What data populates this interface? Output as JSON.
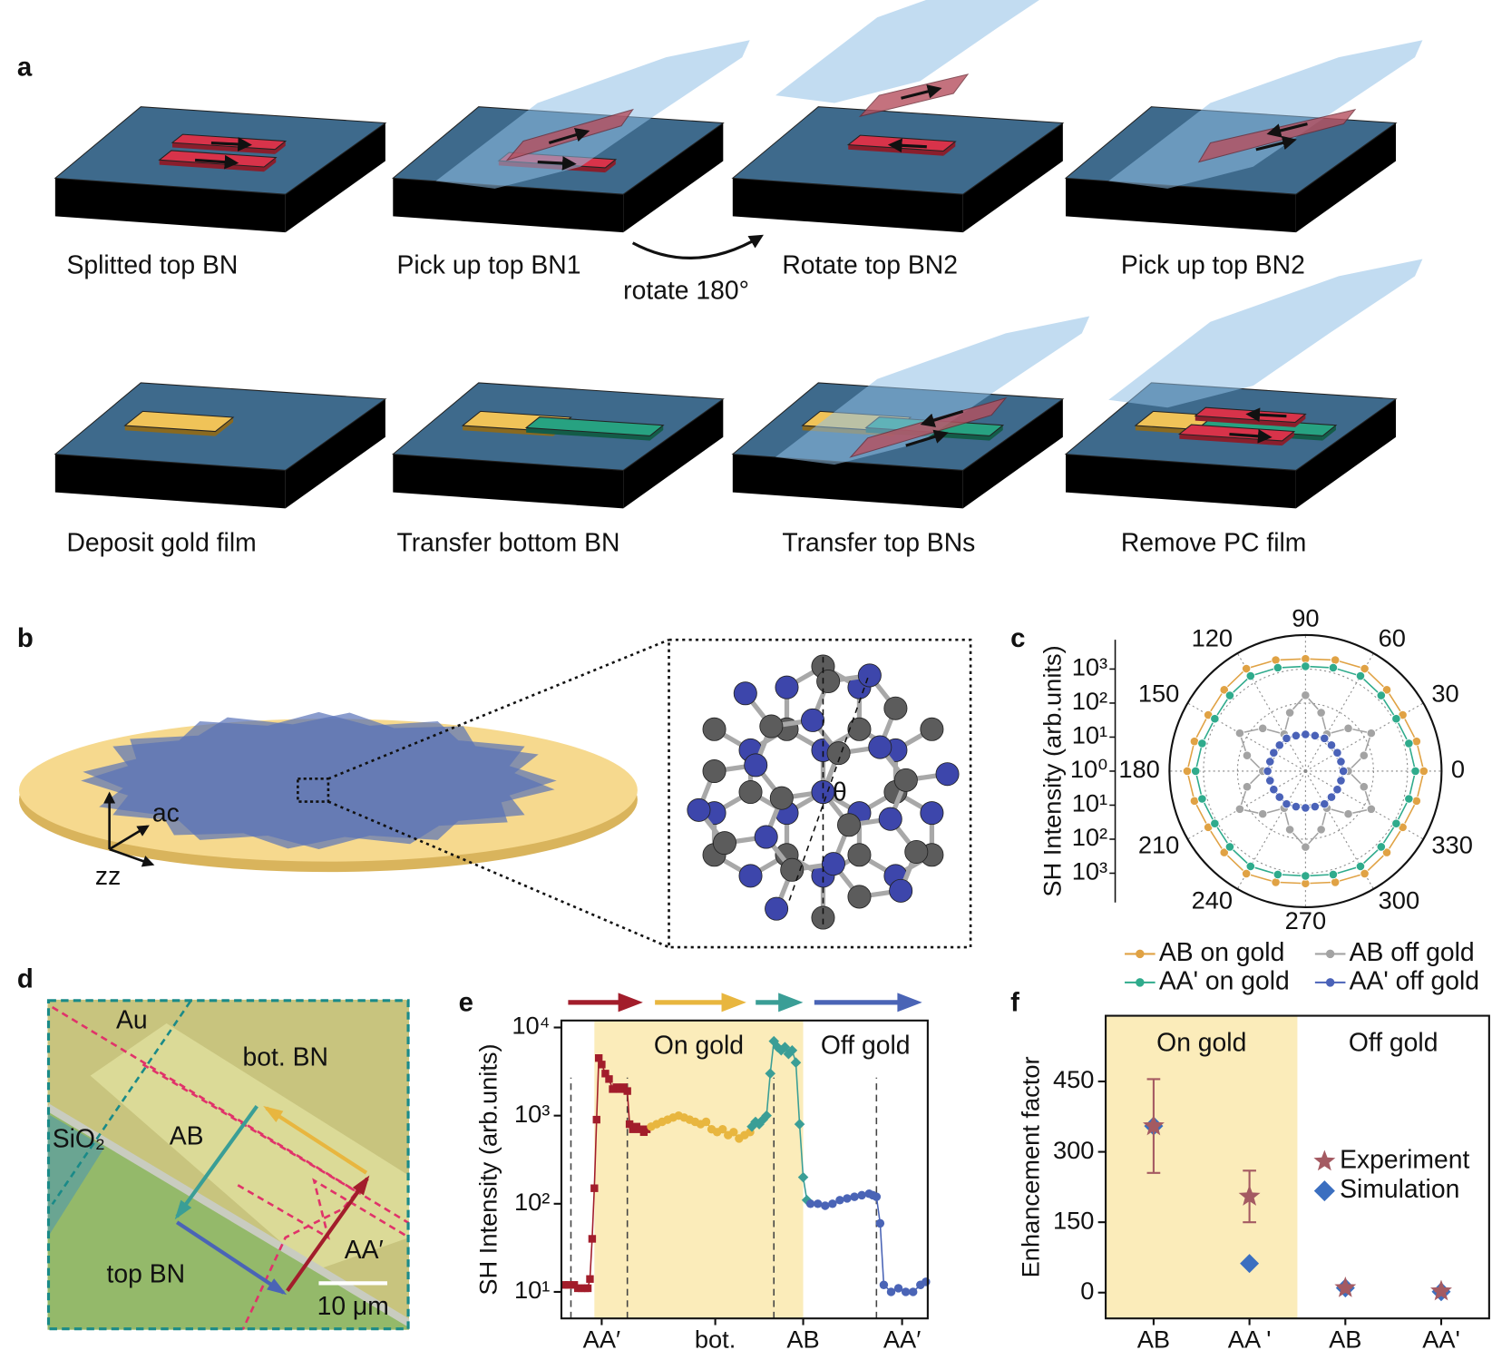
{
  "panel_labels": [
    "a",
    "b",
    "c",
    "d",
    "e",
    "f"
  ],
  "panel_a": {
    "steps": [
      "Splitted top BN",
      "Pick up top BN1",
      "Rotate top BN2",
      "Pick up top BN2",
      "Deposit gold film",
      "Transfer bottom BN",
      "Transfer top BNs",
      "Remove PC film"
    ],
    "rotate_label": "rotate 180°"
  },
  "panel_b": {
    "axis_labels": [
      "ac",
      "zz"
    ],
    "angle_label": "θ"
  },
  "panel_d": {
    "labels": [
      "Au",
      "bot. BN",
      "SiO₂",
      "AB",
      "top BN",
      "AA′"
    ],
    "scale_bar": "10 μm"
  },
  "chart_data": [
    {
      "type": "polar",
      "rlabel": "SH Intensity (arb.units)",
      "rlim": [
        1,
        10000
      ],
      "log_r": true,
      "rticks": [
        {
          "value": 1,
          "label": "10⁰"
        },
        {
          "value": 10,
          "label": "10¹"
        },
        {
          "value": 100,
          "label": "10²"
        },
        {
          "value": 1000,
          "label": "10³"
        }
      ],
      "thetaticks": [
        0,
        30,
        60,
        90,
        120,
        150,
        180,
        210,
        240,
        270,
        300,
        330
      ],
      "theta": [
        0,
        15,
        30,
        45,
        60,
        75,
        90,
        105,
        120,
        135,
        150,
        165,
        180,
        195,
        210,
        225,
        240,
        255,
        270,
        285,
        300,
        315,
        330,
        345
      ],
      "grid": true,
      "series": [
        {
          "name": "AB on gold",
          "color": "#e0a244",
          "values": [
            3000,
            2400,
            2000,
            2400,
            3000,
            2400,
            2000,
            2400,
            3000,
            2400,
            2000,
            2400,
            3000,
            2400,
            2000,
            2400,
            3000,
            2400,
            2000,
            2400,
            3000,
            2400,
            2000,
            2400
          ]
        },
        {
          "name": "AB off gold",
          "color": "#a3a3a3",
          "values": [
            18,
            60,
            170,
            60,
            18,
            60,
            170,
            60,
            18,
            60,
            170,
            60,
            18,
            60,
            170,
            60,
            18,
            60,
            170,
            60,
            18,
            60,
            170,
            60
          ]
        },
        {
          "name": "AA' on gold",
          "color": "#2fab8c",
          "values": [
            1700,
            1400,
            1200,
            1400,
            1700,
            1400,
            1200,
            1400,
            1700,
            1400,
            1200,
            1400,
            1700,
            1400,
            1200,
            1400,
            1700,
            1400,
            1200,
            1400,
            1700,
            1400,
            1200,
            1400
          ]
        },
        {
          "name": "AA' off gold",
          "color": "#4a62b8",
          "values": [
            13,
            12,
            12,
            12,
            13,
            12,
            12,
            12,
            13,
            12,
            12,
            12,
            13,
            12,
            12,
            12,
            13,
            12,
            12,
            12,
            13,
            12,
            12,
            12
          ]
        }
      ]
    },
    {
      "type": "line",
      "ylabel": "SH Intensity (arb.units)",
      "log_y": true,
      "ylim": [
        5,
        12000
      ],
      "yticks": [
        {
          "value": 10,
          "label": "10¹"
        },
        {
          "value": 100,
          "label": "10²"
        },
        {
          "value": 1000,
          "label": "10³"
        },
        {
          "value": 10000,
          "label": "10⁴"
        }
      ],
      "xlim": [
        0,
        100
      ],
      "xticks": [
        {
          "value": 11,
          "label": "AA′"
        },
        {
          "value": 42,
          "label": "bot."
        },
        {
          "value": 66,
          "label": "AB"
        },
        {
          "value": 93,
          "label": "AA′"
        }
      ],
      "shaded_region": {
        "label": "On gold",
        "x": [
          9,
          66
        ],
        "color": "#fbecba"
      },
      "unshaded_label": "Off gold",
      "vlines": [
        2.6,
        18,
        58,
        86
      ],
      "series": [
        {
          "color": "#a21d2b",
          "marker": "square",
          "x": [
            0.8,
            2,
            3.5,
            4.5,
            5.5,
            6.5,
            7.2,
            7.8,
            8.4,
            9,
            9.6,
            10.2,
            11,
            12,
            13,
            14,
            15,
            16,
            17,
            18,
            18.6,
            19.5,
            20.5,
            21.5,
            22.5,
            23.3
          ],
          "values": [
            12,
            12,
            12,
            11,
            11,
            11,
            11,
            14,
            40,
            150,
            900,
            4500,
            3800,
            3000,
            2600,
            2000,
            2100,
            2000,
            2100,
            1900,
            800,
            700,
            750,
            700,
            650,
            700
          ]
        },
        {
          "color": "#e8b63f",
          "marker": "circle",
          "x": [
            24.5,
            26,
            27.5,
            29,
            30.5,
            32,
            33.5,
            35,
            36.5,
            38,
            39.5,
            41,
            42.5,
            44,
            45.5,
            47,
            48.5,
            50,
            51.5
          ],
          "values": [
            750,
            800,
            850,
            900,
            950,
            1000,
            950,
            900,
            850,
            800,
            850,
            700,
            650,
            700,
            600,
            650,
            550,
            600,
            650
          ]
        },
        {
          "color": "#3a9e96",
          "marker": "diamond",
          "x": [
            52,
            53,
            54,
            55,
            56,
            57,
            58,
            59,
            60,
            61,
            62,
            63,
            64,
            65,
            66,
            67
          ],
          "values": [
            750,
            850,
            800,
            900,
            1000,
            3000,
            7000,
            6000,
            5500,
            6000,
            5000,
            5500,
            4000,
            800,
            200,
            110
          ]
        },
        {
          "color": "#4a64b6",
          "marker": "circle",
          "x": [
            68,
            70,
            72,
            74,
            76,
            78,
            80,
            82,
            84,
            85,
            86,
            87,
            88,
            90,
            92,
            94,
            96,
            98,
            99.5
          ],
          "values": [
            100,
            100,
            95,
            100,
            110,
            115,
            120,
            125,
            130,
            125,
            120,
            60,
            12,
            10,
            11,
            10,
            10,
            12,
            13
          ]
        }
      ]
    },
    {
      "type": "scatter",
      "ylabel": "Enhancement factor",
      "categories": [
        "AB",
        "AA '",
        "AB",
        "AA'"
      ],
      "ylim": [
        -55,
        590
      ],
      "yticks": [
        0,
        150,
        300,
        450
      ],
      "regions": [
        {
          "label": "On gold",
          "color": "#fbecba"
        },
        {
          "label": "Off gold",
          "color": "#ffffff"
        }
      ],
      "series": [
        {
          "name": "Experiment",
          "color": "#a45a62",
          "marker": "star",
          "values": [
            355,
            205,
            10,
            3
          ],
          "errors": [
            100,
            55,
            0,
            0
          ]
        },
        {
          "name": "Simulation",
          "color": "#3b6fc0",
          "marker": "diamond",
          "values": [
            355,
            62,
            10,
            2
          ]
        }
      ]
    }
  ]
}
